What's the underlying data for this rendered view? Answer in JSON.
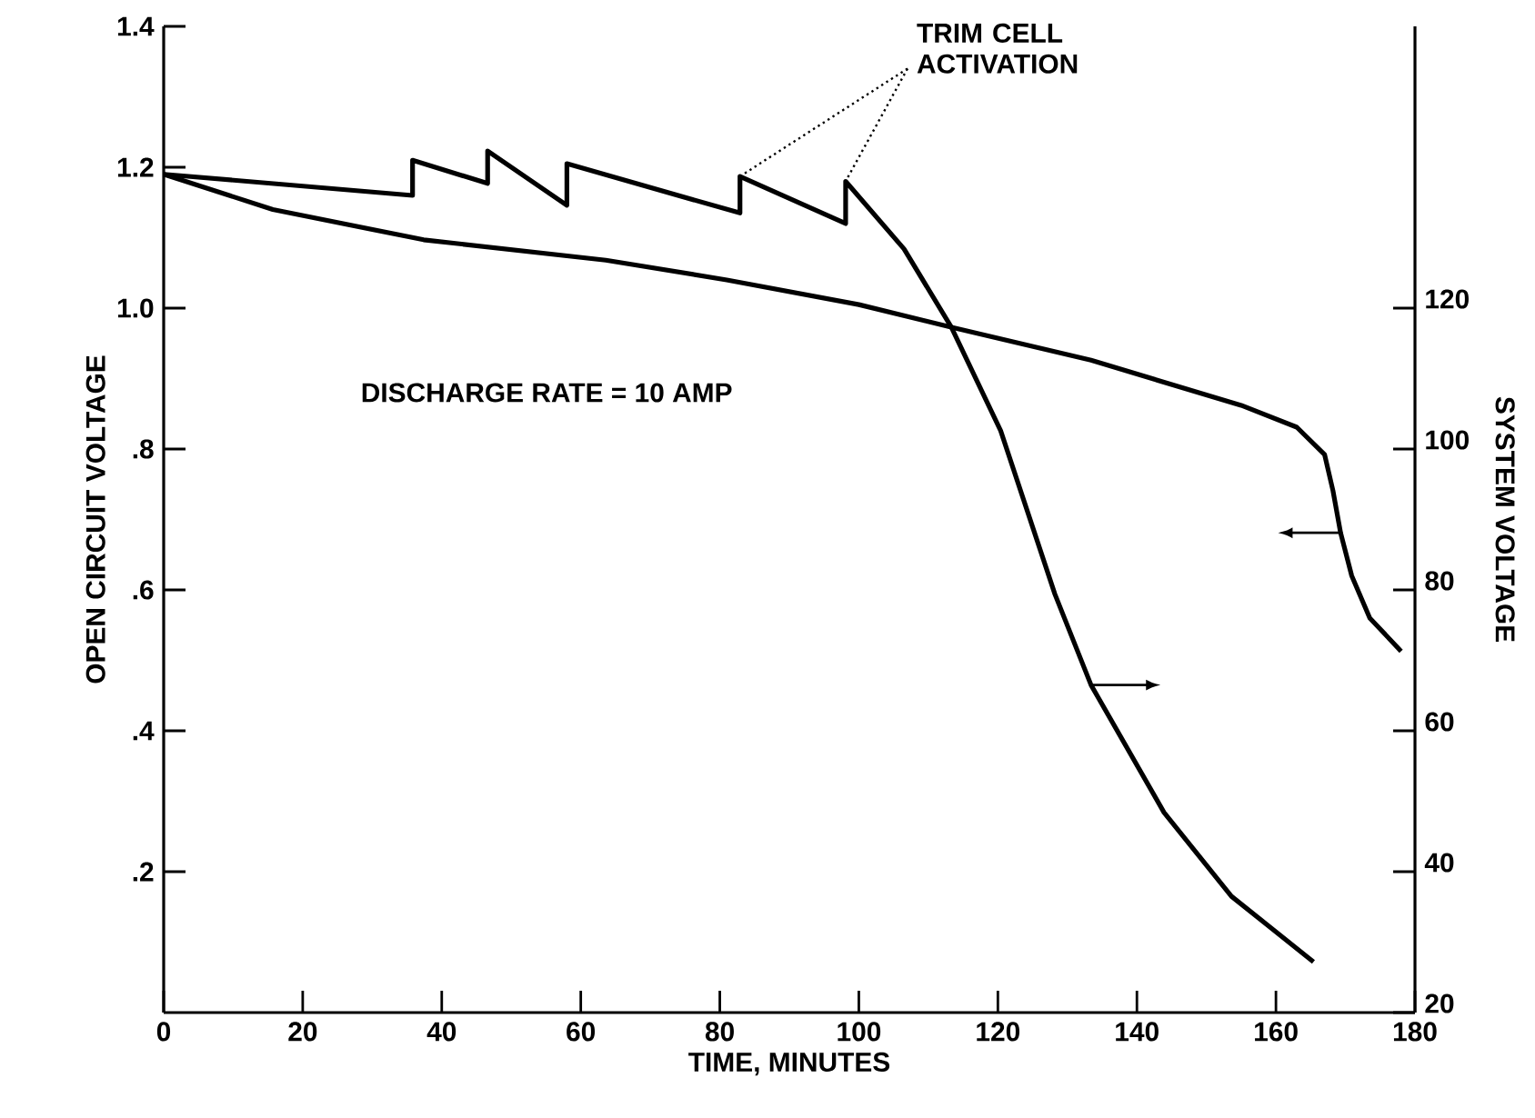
{
  "chart_data": {
    "type": "line",
    "xlabel": "TIME, MINUTES",
    "ylabel": "OPEN CIRCUIT VOLTAGE",
    "y2label": "SYSTEM VOLTAGE",
    "annotations": [
      {
        "text": "TRIM CELL ACTIVATION",
        "x": 98.1,
        "y": 1.18
      },
      "DISCHARGE RATE = 10 AMP"
    ],
    "xlim": [
      0,
      180
    ],
    "xticks": [
      0,
      20,
      40,
      60,
      80,
      100,
      120,
      140,
      160,
      180
    ],
    "ylim": [
      0,
      1.4
    ],
    "yticks": [
      {
        "value": 0.2,
        "label": ".2"
      },
      {
        "value": 0.4,
        "label": ".4"
      },
      {
        "value": 0.6,
        "label": ".6"
      },
      {
        "value": 0.8,
        "label": ".8"
      },
      {
        "value": 1.0,
        "label": "1.0"
      },
      {
        "value": 1.2,
        "label": "1.2"
      },
      {
        "value": 1.4,
        "label": "1.4"
      }
    ],
    "y2lim": [
      20,
      160
    ],
    "y2ticks": [
      20,
      40,
      60,
      80,
      100,
      120
    ],
    "line_style": "solid",
    "marker": "none",
    "grid": false,
    "series": [
      {
        "color": "#000000",
        "x": [
          0,
          15.7,
          37.4,
          63.6,
          81,
          100,
          113.3,
          133.4,
          155,
          163,
          167,
          168.2,
          169.3,
          170.9,
          173.5,
          178
        ],
        "values": [
          1.19,
          1.14,
          1.097,
          1.068,
          1.04,
          1.005,
          0.973,
          0.926,
          0.862,
          0.831,
          0.792,
          0.741,
          0.681,
          0.62,
          0.56,
          0.513
        ]
      },
      {
        "axis": "y2",
        "color": "#000000",
        "x": [
          0,
          35.8,
          35.8,
          46.6,
          46.6,
          58,
          58,
          82.9,
          82.9,
          98.1,
          98.1,
          106.5,
          113.3,
          120.4,
          128.2,
          133.4,
          143.9,
          153.6,
          165.4
        ],
        "values": [
          139,
          136,
          141,
          137.7,
          142.3,
          134.6,
          140.5,
          133.5,
          138.7,
          132,
          138,
          128.4,
          117.3,
          102.6,
          79.4,
          66.5,
          48.4,
          36.5,
          27.2
        ]
      }
    ]
  }
}
